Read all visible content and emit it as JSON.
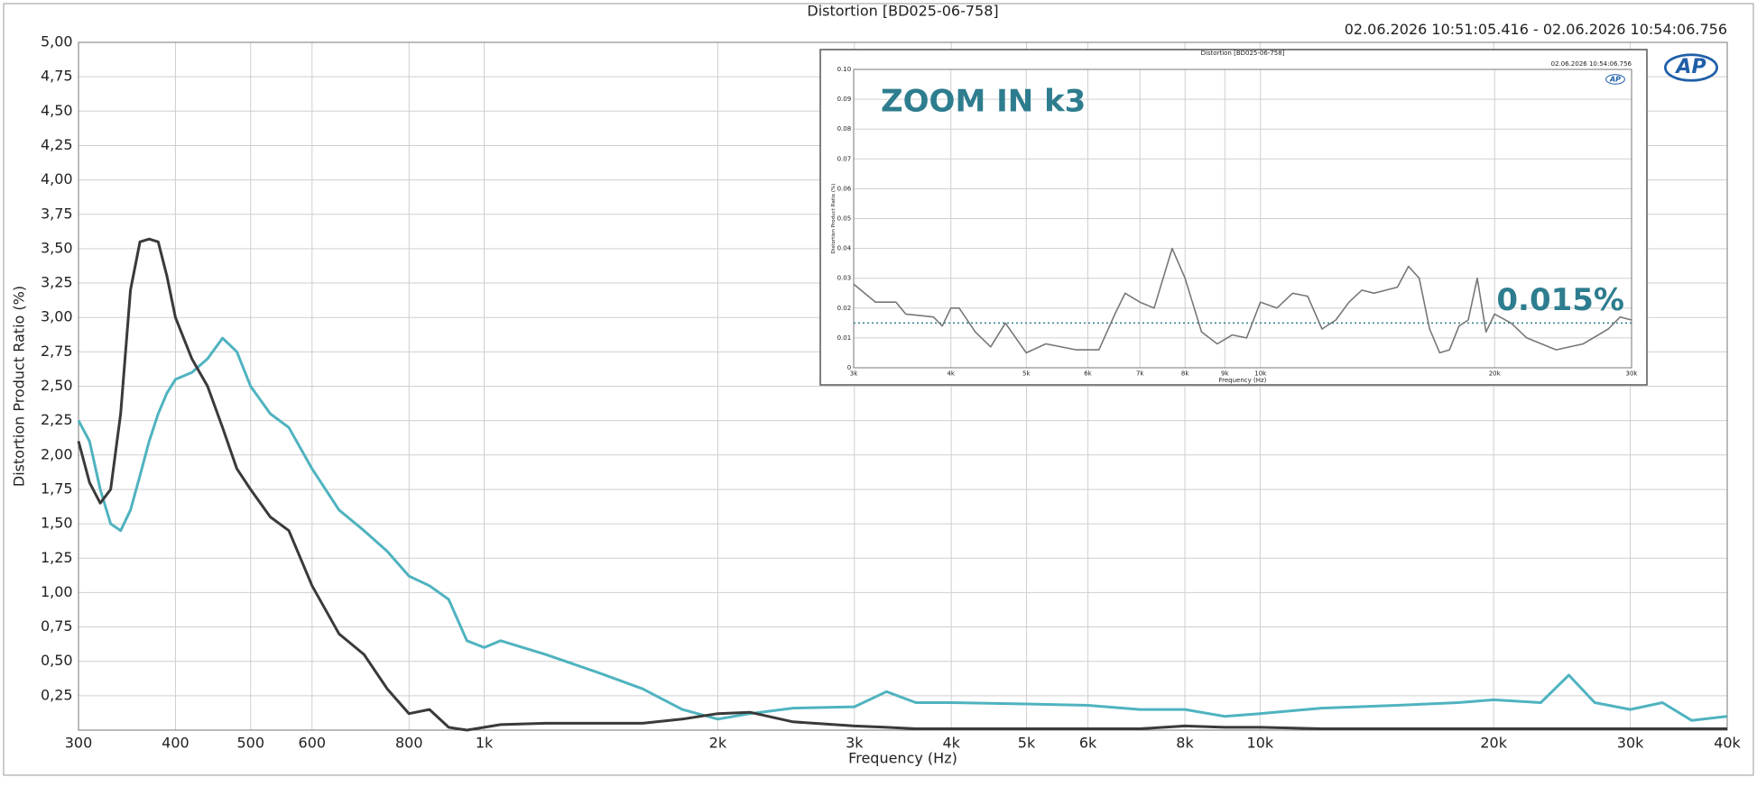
{
  "chart_data": [
    {
      "type": "line",
      "title": "Distortion [BD025-06-758]",
      "subtitle": "02.06.2026 10:51:05.416 - 02.06.2026 10:54:06.756",
      "xlabel": "Frequency (Hz)",
      "ylabel": "Distortion Product Ratio (%)",
      "xscale": "log",
      "grid": true,
      "logo": "AP",
      "xlim": [
        300,
        40000
      ],
      "xticks": [
        300,
        400,
        500,
        600,
        800,
        {
          "value": 1000,
          "label": "1k"
        },
        {
          "value": 2000,
          "label": "2k"
        },
        {
          "value": 3000,
          "label": "3k"
        },
        {
          "value": 4000,
          "label": "4k"
        },
        {
          "value": 5000,
          "label": "5k"
        },
        {
          "value": 6000,
          "label": "6k"
        },
        {
          "value": 8000,
          "label": "8k"
        },
        {
          "value": 10000,
          "label": "10k"
        },
        {
          "value": 20000,
          "label": "20k"
        },
        {
          "value": 30000,
          "label": "30k"
        },
        {
          "value": 40000,
          "label": "40k"
        }
      ],
      "ylim": [
        0,
        5
      ],
      "yticks": [
        {
          "value": 0.25,
          "label": "0,25"
        },
        {
          "value": 0.5,
          "label": "0,50"
        },
        {
          "value": 0.75,
          "label": "0,75"
        },
        {
          "value": 1,
          "label": "1,00"
        },
        {
          "value": 1.25,
          "label": "1,25"
        },
        {
          "value": 1.5,
          "label": "1,50"
        },
        {
          "value": 1.75,
          "label": "1,75"
        },
        {
          "value": 2,
          "label": "2,00"
        },
        {
          "value": 2.25,
          "label": "2,25"
        },
        {
          "value": 2.5,
          "label": "2,50"
        },
        {
          "value": 2.75,
          "label": "2,75"
        },
        {
          "value": 3,
          "label": "3,00"
        },
        {
          "value": 3.25,
          "label": "3,25"
        },
        {
          "value": 3.5,
          "label": "3,50"
        },
        {
          "value": 3.75,
          "label": "3,75"
        },
        {
          "value": 4,
          "label": "4,00"
        },
        {
          "value": 4.25,
          "label": "4,25"
        },
        {
          "value": 4.5,
          "label": "4,50"
        },
        {
          "value": 4.75,
          "label": "4,75"
        },
        {
          "value": 5,
          "label": "5,00"
        }
      ],
      "x": [
        300,
        310,
        320,
        330,
        340,
        350,
        360,
        370,
        380,
        390,
        400,
        420,
        440,
        460,
        480,
        500,
        530,
        560,
        600,
        650,
        700,
        750,
        800,
        850,
        900,
        950,
        1000,
        1050,
        1200,
        1400,
        1600,
        1800,
        2000,
        2200,
        2500,
        3000,
        3300,
        3600,
        4000,
        5000,
        6000,
        7000,
        8000,
        9000,
        10000,
        12000,
        15000,
        18000,
        20000,
        23000,
        25000,
        27000,
        30000,
        33000,
        36000,
        40000
      ],
      "series": [
        {
          "color": "#4fb3bf",
          "values": [
            2.25,
            2.1,
            1.75,
            1.5,
            1.45,
            1.6,
            1.85,
            2.1,
            2.3,
            2.45,
            2.55,
            2.6,
            2.7,
            2.85,
            2.75,
            2.5,
            2.3,
            2.2,
            1.9,
            1.6,
            1.45,
            1.3,
            1.12,
            1.05,
            0.95,
            0.65,
            0.6,
            0.65,
            0.55,
            0.42,
            0.3,
            0.15,
            0.08,
            0.12,
            0.16,
            0.17,
            0.28,
            0.2,
            0.2,
            0.19,
            0.18,
            0.15,
            0.15,
            0.1,
            0.12,
            0.16,
            0.18,
            0.2,
            0.22,
            0.2,
            0.4,
            0.2,
            0.15,
            0.2,
            0.07,
            0.1
          ]
        },
        {
          "color": "#3a3a3a",
          "values": [
            2.1,
            1.8,
            1.65,
            1.75,
            2.3,
            3.2,
            3.55,
            3.57,
            3.55,
            3.3,
            3.0,
            2.7,
            2.5,
            2.2,
            1.9,
            1.75,
            1.55,
            1.45,
            1.05,
            0.7,
            0.55,
            0.3,
            0.12,
            0.15,
            0.02,
            0,
            0.02,
            0.04,
            0.05,
            0.05,
            0.05,
            0.08,
            0.12,
            0.13,
            0.06,
            0.03,
            0.02,
            0.01,
            0.01,
            0.01,
            0.01,
            0.01,
            0.03,
            0.02,
            0.02,
            0.01,
            0.01,
            0.01,
            0.01,
            0.01,
            0.01,
            0.01,
            0.01,
            0.01,
            0.01,
            0.01
          ]
        }
      ]
    },
    {
      "type": "line",
      "title": "Distortion [BD025-06-758]",
      "subtitle": "02.06.2026 10:54:06.756",
      "xlabel": "Frequency (Hz)",
      "ylabel": "Distortion Product Ratio (%)",
      "xscale": "log",
      "grid": true,
      "logo": "AP",
      "annotation": "ZOOM IN k3",
      "reference": {
        "value": 0.015,
        "label": "0.015%"
      },
      "xlim": [
        3000,
        30000
      ],
      "xticks": [
        {
          "value": 3000,
          "label": "3k"
        },
        {
          "value": 4000,
          "label": "4k"
        },
        {
          "value": 5000,
          "label": "5k"
        },
        {
          "value": 6000,
          "label": "6k"
        },
        {
          "value": 7000,
          "label": "7k"
        },
        {
          "value": 8000,
          "label": "8k"
        },
        {
          "value": 9000,
          "label": "9k"
        },
        {
          "value": 10000,
          "label": "10k"
        },
        {
          "value": 20000,
          "label": "20k"
        },
        {
          "value": 30000,
          "label": "30k"
        }
      ],
      "ylim": [
        0,
        0.1
      ],
      "yticks": [
        0,
        0.01,
        0.02,
        0.03,
        0.04,
        0.05,
        0.06,
        0.07,
        0.08,
        0.09,
        {
          "value": 0.1,
          "label": "0.10"
        }
      ],
      "x": [
        3000,
        3200,
        3400,
        3500,
        3800,
        3900,
        4000,
        4100,
        4300,
        4500,
        4700,
        5000,
        5300,
        5800,
        6200,
        6500,
        6700,
        7000,
        7300,
        7700,
        8000,
        8400,
        8800,
        9200,
        9600,
        10000,
        10500,
        11000,
        11500,
        12000,
        12500,
        13000,
        13500,
        14000,
        15000,
        15500,
        16000,
        16500,
        17000,
        17500,
        18000,
        18500,
        19000,
        19500,
        20000,
        21000,
        22000,
        24000,
        26000,
        28000,
        29000,
        30000
      ],
      "series": [
        {
          "color": "#777777",
          "values": [
            0.028,
            0.022,
            0.022,
            0.018,
            0.017,
            0.014,
            0.02,
            0.02,
            0.012,
            0.007,
            0.015,
            0.005,
            0.008,
            0.006,
            0.006,
            0.018,
            0.025,
            0.022,
            0.02,
            0.04,
            0.03,
            0.012,
            0.008,
            0.011,
            0.01,
            0.022,
            0.02,
            0.025,
            0.024,
            0.013,
            0.016,
            0.022,
            0.026,
            0.025,
            0.027,
            0.034,
            0.03,
            0.013,
            0.005,
            0.006,
            0.014,
            0.016,
            0.03,
            0.012,
            0.018,
            0.015,
            0.01,
            0.006,
            0.008,
            0.013,
            0.017,
            0.016
          ]
        }
      ]
    }
  ]
}
